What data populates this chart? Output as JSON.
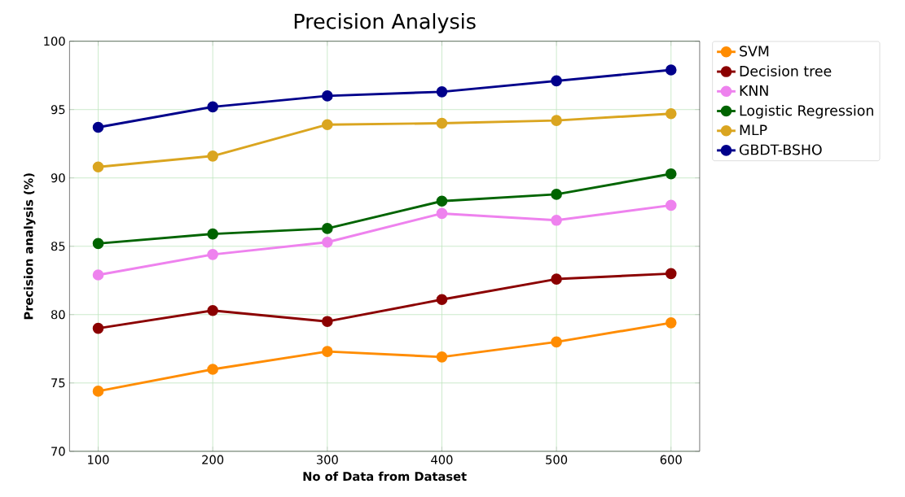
{
  "chart_data": {
    "type": "line",
    "title": "Precision Analysis",
    "xlabel": "No of Data from Dataset",
    "ylabel": "Precision analysis (%)",
    "x": [
      100,
      200,
      300,
      400,
      500,
      600
    ],
    "series": [
      {
        "name": "SVM",
        "color": "#ff8c00",
        "values": [
          74.4,
          76.0,
          77.3,
          76.9,
          78.0,
          79.4
        ]
      },
      {
        "name": "Decision tree",
        "color": "#8b0000",
        "values": [
          79.0,
          80.3,
          79.5,
          81.1,
          82.6,
          83.0
        ]
      },
      {
        "name": "KNN",
        "color": "#ee82ee",
        "values": [
          82.9,
          84.4,
          85.3,
          87.4,
          86.9,
          88.0
        ]
      },
      {
        "name": "Logistic Regression",
        "color": "#006400",
        "values": [
          85.2,
          85.9,
          86.3,
          88.3,
          88.8,
          90.3
        ]
      },
      {
        "name": "MLP",
        "color": "#daa520",
        "values": [
          90.8,
          91.6,
          93.9,
          94.0,
          94.2,
          94.7
        ]
      },
      {
        "name": "GBDT-BSHO",
        "color": "#00008b",
        "values": [
          93.7,
          95.2,
          96.0,
          96.3,
          97.1,
          97.9
        ]
      }
    ],
    "xlim": [
      75,
      625
    ],
    "ylim": [
      70,
      100
    ],
    "xticks": [
      100,
      200,
      300,
      400,
      500,
      600
    ],
    "yticks": [
      70,
      75,
      80,
      85,
      90,
      95,
      100
    ],
    "grid": true,
    "legend": "right",
    "marker": "circle",
    "line_style": "solid"
  }
}
